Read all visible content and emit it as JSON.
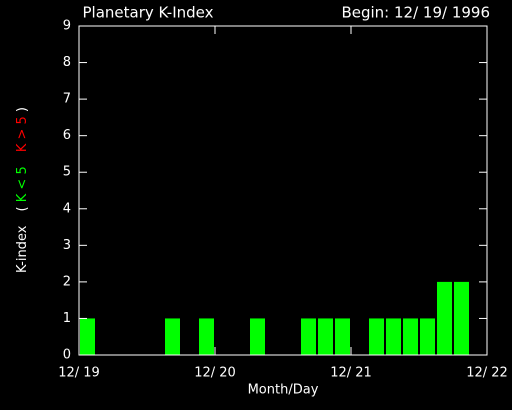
{
  "chart_data": {
    "type": "bar",
    "title": "Planetary K-Index",
    "subtitle": "Begin: 12/ 19/ 1996",
    "x_label": "Month/Day",
    "y_label": {
      "name": "K-index",
      "open": "(",
      "low": "K < 5",
      "high": "K > 5",
      "close": ")"
    },
    "x": [
      0,
      3,
      6,
      9,
      12,
      15,
      18,
      21,
      24,
      27,
      30,
      33,
      36,
      39,
      42,
      45,
      48,
      51,
      54,
      57,
      60,
      63,
      66,
      69
    ],
    "bar_width": 3,
    "values": [
      1,
      0,
      0,
      0,
      0,
      1,
      0,
      1,
      0,
      0,
      1,
      0,
      0,
      1,
      1,
      1,
      0,
      1,
      1,
      1,
      1,
      2,
      2,
      0
    ],
    "color": "#00ff00",
    "low_color": "#00ff00",
    "high_color": "#ff0000",
    "axis_color": "#ffffff",
    "xlim": [
      0,
      72
    ],
    "xticks": [
      {
        "value": 0,
        "label": "12/ 19"
      },
      {
        "value": 24,
        "label": "12/ 20"
      },
      {
        "value": 48,
        "label": "12/ 21"
      },
      {
        "value": 72,
        "label": "12/ 22"
      }
    ],
    "ylim": [
      0,
      9
    ],
    "yticks": [
      0,
      1,
      2,
      3,
      4,
      5,
      6,
      7,
      8,
      9
    ]
  }
}
